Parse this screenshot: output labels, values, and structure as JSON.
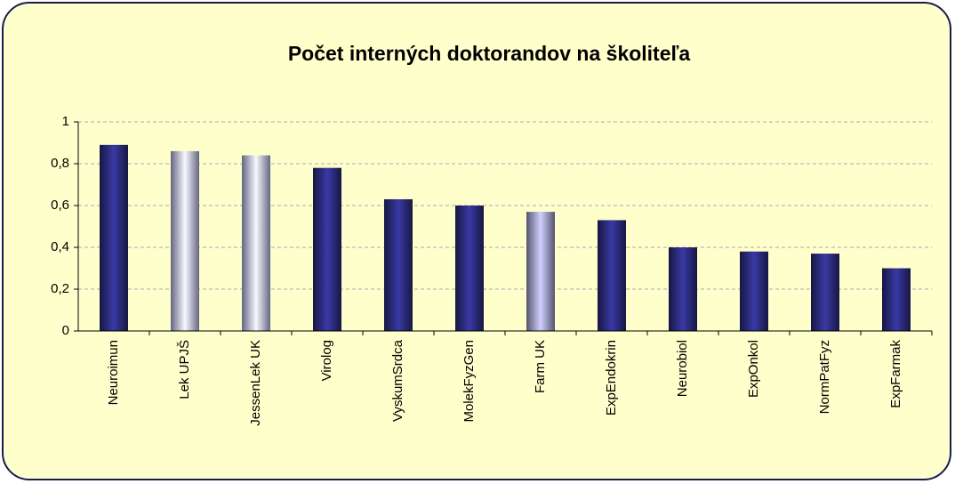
{
  "chart_data": {
    "type": "bar",
    "title": "Počet interných doktorandov na školiteľa",
    "categories": [
      "Neuroimun",
      "Lek UPJŠ",
      "JessenLek UK",
      "Virolog",
      "VyskumSrdca",
      "MolekFyzGen",
      "Farm UK",
      "ExpEndokrin",
      "Neurobiol",
      "ExpOnkol",
      "NormPatFyz",
      "ExpFarmak"
    ],
    "values": [
      0.89,
      0.86,
      0.84,
      0.78,
      0.63,
      0.6,
      0.57,
      0.53,
      0.4,
      0.38,
      0.37,
      0.3
    ],
    "colors": [
      "#2a2a7a",
      "#b8b8ee",
      "#b8b8ee",
      "#2a2a7a",
      "#2a2a7a",
      "#2a2a7a",
      "#9a9ac8",
      "#2a2a7a",
      "#2a2a7a",
      "#2a2a7a",
      "#2a2a7a",
      "#2a2a7a"
    ],
    "ylim": [
      0,
      1
    ],
    "yticks": [
      0,
      {
        "value": 0.2,
        "label": "0,2"
      },
      {
        "value": 0.4,
        "label": "0,4"
      },
      {
        "value": 0.6,
        "label": "0,6"
      },
      {
        "value": 0.8,
        "label": "0,8"
      },
      1
    ],
    "grid": true
  }
}
